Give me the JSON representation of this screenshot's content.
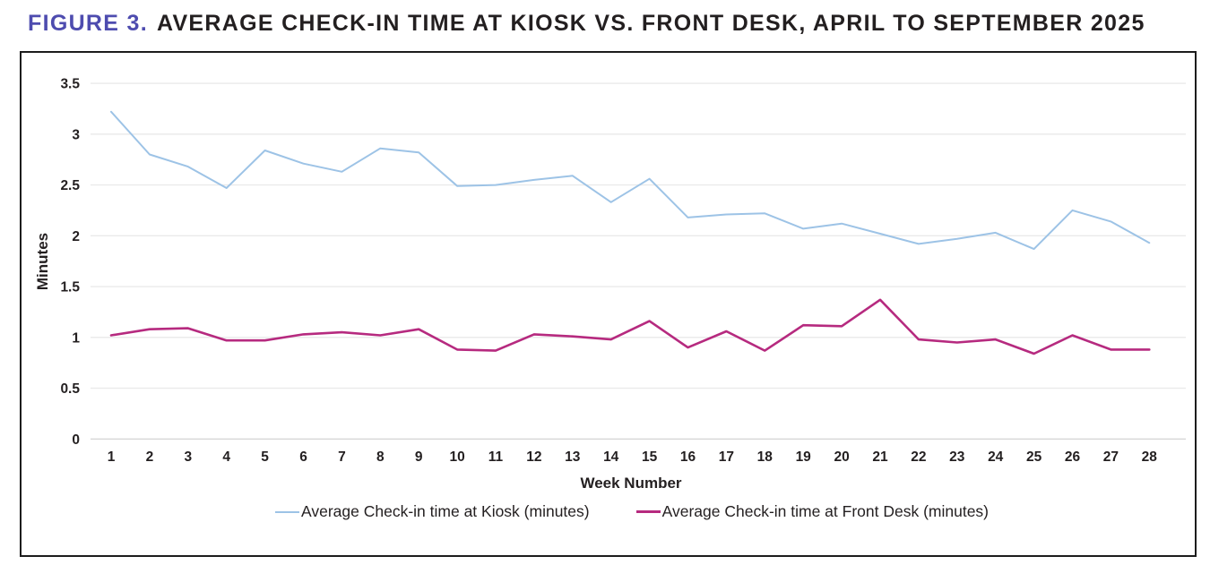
{
  "figure": {
    "label": "FIGURE 3.",
    "title_rest": "AVERAGE CHECK-IN TIME AT KIOSK VS. FRONT DESK, APRIL TO SEPTEMBER 2025"
  },
  "colors": {
    "title_accent": "#4e4caf",
    "title_text": "#231f20",
    "kiosk_line": "#9dc3e6",
    "front_desk_line": "#b62a7f",
    "gridline": "#eaeaea",
    "zero_gridline": "#d6d6d6",
    "axis_text": "#231f20"
  },
  "chart_data": {
    "type": "line",
    "title": "Average check-in time at kiosk vs. front desk, April to September 2025",
    "xlabel": "Week Number",
    "ylabel": "Minutes",
    "ylim": [
      0,
      3.5
    ],
    "ytick_step": 0.5,
    "ytick_labels": [
      "0",
      "0.5",
      "1",
      "1.5",
      "2",
      "2.5",
      "3",
      "3.5"
    ],
    "grid": "horizontal",
    "legend_position": "bottom",
    "x": [
      1,
      2,
      3,
      4,
      5,
      6,
      7,
      8,
      9,
      10,
      11,
      12,
      13,
      14,
      15,
      16,
      17,
      18,
      19,
      20,
      21,
      22,
      23,
      24,
      25,
      26,
      27,
      28
    ],
    "series": [
      {
        "name": "Average Check-in time at Kiosk (minutes)",
        "color": "#9dc3e6",
        "stroke_width": 2,
        "values": [
          3.22,
          2.8,
          2.68,
          2.47,
          2.84,
          2.71,
          2.63,
          2.86,
          2.82,
          2.49,
          2.5,
          2.55,
          2.59,
          2.33,
          2.56,
          2.18,
          2.21,
          2.22,
          2.07,
          2.12,
          2.02,
          1.92,
          1.97,
          2.03,
          1.87,
          2.25,
          2.14,
          1.93
        ]
      },
      {
        "name": "Average Check-in time at Front Desk (minutes)",
        "color": "#b62a7f",
        "stroke_width": 2.6,
        "values": [
          1.02,
          1.08,
          1.09,
          0.97,
          0.97,
          1.03,
          1.05,
          1.02,
          1.08,
          0.88,
          0.87,
          1.03,
          1.01,
          0.98,
          1.16,
          0.9,
          1.06,
          0.87,
          1.12,
          1.11,
          1.37,
          0.98,
          0.95,
          0.98,
          0.84,
          1.02,
          0.88,
          0.88
        ]
      }
    ]
  }
}
